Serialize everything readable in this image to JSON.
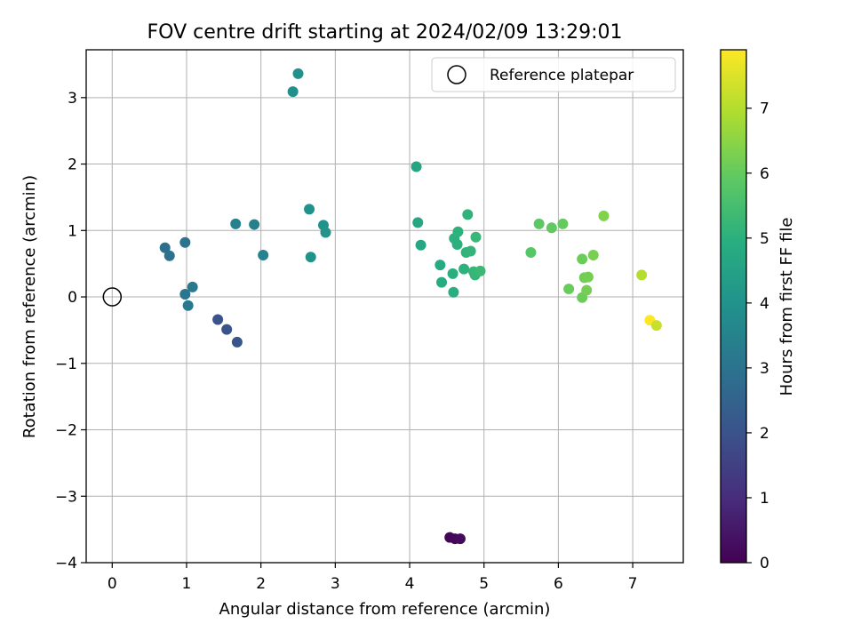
{
  "chart_data": {
    "type": "scatter",
    "title": "FOV centre drift starting at 2024/02/09 13:29:01",
    "xlabel": "Angular distance from reference (arcmin)",
    "ylabel": "Rotation from reference (arcmin)",
    "xlim": [
      -0.35,
      7.68
    ],
    "ylim": [
      -4.0,
      3.72
    ],
    "xticks": [
      0,
      1,
      2,
      3,
      4,
      5,
      6,
      7
    ],
    "yticks": [
      -4,
      -3,
      -2,
      -1,
      0,
      1,
      2,
      3
    ],
    "grid": true,
    "legend": {
      "placement": "top-right",
      "entries": [
        "Reference platepar"
      ]
    },
    "reference_point": {
      "x": 0,
      "y": 0
    },
    "colorbar": {
      "label": "Hours from first FF file",
      "colormap": "viridis",
      "range": [
        0,
        7.9
      ],
      "ticks": [
        0,
        1,
        2,
        3,
        4,
        5,
        6,
        7
      ]
    },
    "points": [
      {
        "x": 4.54,
        "y": -3.62,
        "hours": 0.1
      },
      {
        "x": 4.61,
        "y": -3.64,
        "hours": 0.15
      },
      {
        "x": 4.68,
        "y": -3.64,
        "hours": 0.2
      },
      {
        "x": 1.42,
        "y": -0.34,
        "hours": 2.0
      },
      {
        "x": 1.54,
        "y": -0.49,
        "hours": 2.05
      },
      {
        "x": 1.68,
        "y": -0.68,
        "hours": 2.1
      },
      {
        "x": 0.71,
        "y": 0.74,
        "hours": 2.9
      },
      {
        "x": 0.77,
        "y": 0.62,
        "hours": 2.95
      },
      {
        "x": 0.98,
        "y": 0.82,
        "hours": 3.0
      },
      {
        "x": 0.98,
        "y": 0.04,
        "hours": 3.1
      },
      {
        "x": 1.02,
        "y": -0.13,
        "hours": 3.15
      },
      {
        "x": 1.08,
        "y": 0.15,
        "hours": 3.2
      },
      {
        "x": 1.66,
        "y": 1.1,
        "hours": 3.4
      },
      {
        "x": 1.91,
        "y": 1.09,
        "hours": 3.45
      },
      {
        "x": 2.03,
        "y": 0.63,
        "hours": 3.5
      },
      {
        "x": 2.43,
        "y": 3.09,
        "hours": 3.9
      },
      {
        "x": 2.5,
        "y": 3.36,
        "hours": 3.95
      },
      {
        "x": 2.65,
        "y": 1.32,
        "hours": 3.95
      },
      {
        "x": 2.67,
        "y": 0.6,
        "hours": 4.0
      },
      {
        "x": 2.84,
        "y": 1.08,
        "hours": 4.0
      },
      {
        "x": 2.87,
        "y": 0.97,
        "hours": 4.05
      },
      {
        "x": 4.09,
        "y": 1.96,
        "hours": 4.6
      },
      {
        "x": 4.11,
        "y": 1.12,
        "hours": 4.65
      },
      {
        "x": 4.15,
        "y": 0.78,
        "hours": 4.7
      },
      {
        "x": 4.41,
        "y": 0.48,
        "hours": 4.8
      },
      {
        "x": 4.43,
        "y": 0.22,
        "hours": 4.85
      },
      {
        "x": 4.58,
        "y": 0.35,
        "hours": 4.95
      },
      {
        "x": 4.59,
        "y": 0.07,
        "hours": 4.95
      },
      {
        "x": 4.6,
        "y": 0.88,
        "hours": 5.0
      },
      {
        "x": 4.64,
        "y": 0.79,
        "hours": 5.0
      },
      {
        "x": 4.65,
        "y": 0.98,
        "hours": 5.05
      },
      {
        "x": 4.73,
        "y": 0.42,
        "hours": 5.05
      },
      {
        "x": 4.76,
        "y": 0.67,
        "hours": 5.1
      },
      {
        "x": 4.78,
        "y": 1.24,
        "hours": 5.1
      },
      {
        "x": 4.82,
        "y": 0.69,
        "hours": 5.15
      },
      {
        "x": 4.86,
        "y": 0.38,
        "hours": 5.2
      },
      {
        "x": 4.88,
        "y": 0.33,
        "hours": 5.2
      },
      {
        "x": 4.89,
        "y": 0.9,
        "hours": 5.25
      },
      {
        "x": 4.95,
        "y": 0.39,
        "hours": 5.3
      },
      {
        "x": 5.63,
        "y": 0.67,
        "hours": 5.8
      },
      {
        "x": 5.74,
        "y": 1.1,
        "hours": 5.9
      },
      {
        "x": 5.91,
        "y": 1.04,
        "hours": 5.95
      },
      {
        "x": 6.06,
        "y": 1.1,
        "hours": 6.0
      },
      {
        "x": 6.14,
        "y": 0.12,
        "hours": 6.05
      },
      {
        "x": 6.32,
        "y": -0.01,
        "hours": 6.1
      },
      {
        "x": 6.32,
        "y": 0.57,
        "hours": 6.1
      },
      {
        "x": 6.35,
        "y": 0.29,
        "hours": 6.15
      },
      {
        "x": 6.38,
        "y": 0.1,
        "hours": 6.2
      },
      {
        "x": 6.4,
        "y": 0.3,
        "hours": 6.2
      },
      {
        "x": 6.47,
        "y": 0.63,
        "hours": 6.25
      },
      {
        "x": 6.61,
        "y": 1.22,
        "hours": 6.35
      },
      {
        "x": 7.12,
        "y": 0.33,
        "hours": 7.0
      },
      {
        "x": 7.23,
        "y": -0.35,
        "hours": 7.9
      },
      {
        "x": 7.32,
        "y": -0.43,
        "hours": 7.25
      }
    ]
  }
}
